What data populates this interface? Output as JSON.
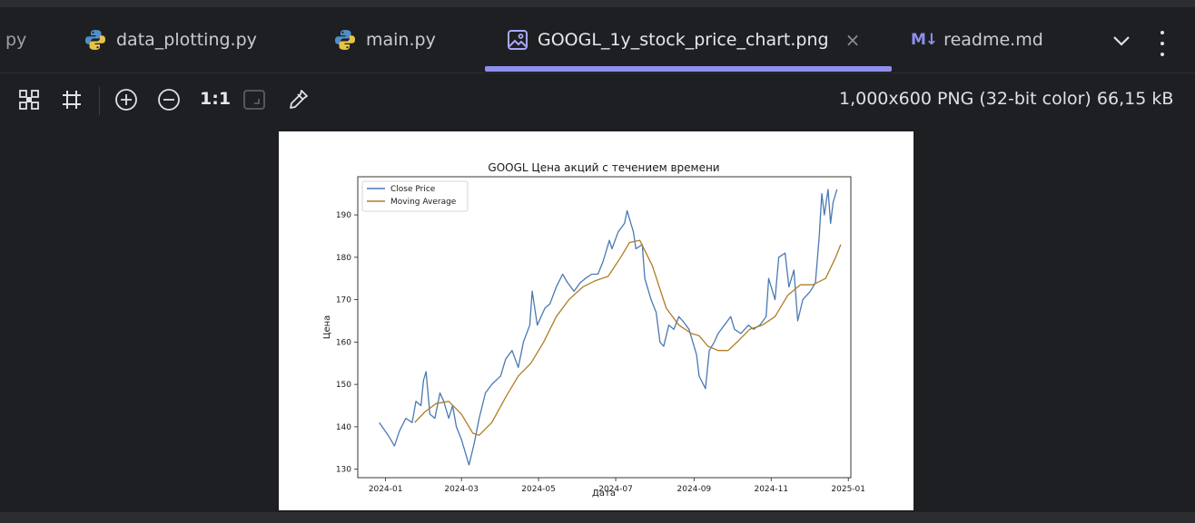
{
  "tabs": [
    {
      "label": "py",
      "icon": "python-file-icon"
    },
    {
      "label": "data_plotting.py",
      "icon": "python-file-icon"
    },
    {
      "label": "main.py",
      "icon": "python-file-icon"
    },
    {
      "label": "GOOGL_1y_stock_price_chart.png",
      "icon": "image-file-icon",
      "active": true,
      "close": "×"
    },
    {
      "label": "readme.md",
      "icon": "markdown-file-icon",
      "badge": "M↓"
    }
  ],
  "toolbar": {
    "actual_size_label": "1:1",
    "icons": [
      "grid-icon",
      "chessboard-icon",
      "zoom-in-icon",
      "zoom-out-icon",
      "fit-zoom-icon",
      "color-picker-icon"
    ],
    "image_info": "1,000x600 PNG (32-bit color) 66,15 kB"
  },
  "colors": {
    "accent": "#8f8ff0",
    "background": "#1e1f22",
    "close_price": "#4a79b3",
    "moving_average": "#b07d26"
  },
  "chart_data": {
    "type": "line",
    "title": "GOOGL Цена акций с течением времени",
    "xlabel": "Дата",
    "ylabel": "Цена",
    "xticks": [
      "2024-01",
      "2024-03",
      "2024-05",
      "2024-07",
      "2024-09",
      "2024-11",
      "2025-01"
    ],
    "yticks": [
      130,
      140,
      150,
      160,
      170,
      180,
      190
    ],
    "xlim": [
      "2023-12-10",
      "2025-01-03"
    ],
    "ylim": [
      128,
      199
    ],
    "legend": "top-left",
    "grid": false,
    "series": [
      {
        "name": "Close Price",
        "color": "#4a79b3",
        "points": [
          [
            "2023-12-27",
            141
          ],
          [
            "2024-01-03",
            138
          ],
          [
            "2024-01-08",
            135.5
          ],
          [
            "2024-01-12",
            139
          ],
          [
            "2024-01-17",
            142
          ],
          [
            "2024-01-22",
            141
          ],
          [
            "2024-01-25",
            146
          ],
          [
            "2024-01-29",
            145
          ],
          [
            "2024-01-31",
            151
          ],
          [
            "2024-02-02",
            153
          ],
          [
            "2024-02-05",
            143
          ],
          [
            "2024-02-09",
            142
          ],
          [
            "2024-02-13",
            148
          ],
          [
            "2024-02-16",
            146
          ],
          [
            "2024-02-20",
            142
          ],
          [
            "2024-02-23",
            145
          ],
          [
            "2024-02-26",
            140
          ],
          [
            "2024-03-01",
            137
          ],
          [
            "2024-03-05",
            133
          ],
          [
            "2024-03-07",
            131
          ],
          [
            "2024-03-11",
            136
          ],
          [
            "2024-03-15",
            142
          ],
          [
            "2024-03-20",
            148
          ],
          [
            "2024-03-25",
            150
          ],
          [
            "2024-04-01",
            152
          ],
          [
            "2024-04-05",
            156
          ],
          [
            "2024-04-10",
            158
          ],
          [
            "2024-04-15",
            154
          ],
          [
            "2024-04-19",
            160
          ],
          [
            "2024-04-24",
            164
          ],
          [
            "2024-04-26",
            172
          ],
          [
            "2024-04-30",
            164
          ],
          [
            "2024-05-06",
            168
          ],
          [
            "2024-05-10",
            169
          ],
          [
            "2024-05-15",
            173
          ],
          [
            "2024-05-20",
            176
          ],
          [
            "2024-05-24",
            174
          ],
          [
            "2024-05-29",
            172
          ],
          [
            "2024-06-03",
            174
          ],
          [
            "2024-06-07",
            175
          ],
          [
            "2024-06-12",
            176
          ],
          [
            "2024-06-17",
            176
          ],
          [
            "2024-06-21",
            179
          ],
          [
            "2024-06-26",
            184
          ],
          [
            "2024-06-28",
            182
          ],
          [
            "2024-07-03",
            186
          ],
          [
            "2024-07-08",
            188
          ],
          [
            "2024-07-10",
            191
          ],
          [
            "2024-07-15",
            186
          ],
          [
            "2024-07-17",
            182
          ],
          [
            "2024-07-22",
            183
          ],
          [
            "2024-07-24",
            175
          ],
          [
            "2024-07-29",
            170
          ],
          [
            "2024-08-02",
            167
          ],
          [
            "2024-08-05",
            160
          ],
          [
            "2024-08-08",
            159
          ],
          [
            "2024-08-12",
            164
          ],
          [
            "2024-08-16",
            163
          ],
          [
            "2024-08-20",
            166
          ],
          [
            "2024-08-23",
            165
          ],
          [
            "2024-08-28",
            163
          ],
          [
            "2024-09-03",
            157
          ],
          [
            "2024-09-05",
            152
          ],
          [
            "2024-09-10",
            149
          ],
          [
            "2024-09-13",
            158
          ],
          [
            "2024-09-17",
            160
          ],
          [
            "2024-09-20",
            162
          ],
          [
            "2024-09-25",
            164
          ],
          [
            "2024-09-30",
            166
          ],
          [
            "2024-10-03",
            163
          ],
          [
            "2024-10-08",
            162
          ],
          [
            "2024-10-14",
            164
          ],
          [
            "2024-10-18",
            163
          ],
          [
            "2024-10-23",
            164
          ],
          [
            "2024-10-28",
            166
          ],
          [
            "2024-10-30",
            175
          ],
          [
            "2024-11-04",
            170
          ],
          [
            "2024-11-07",
            180
          ],
          [
            "2024-11-12",
            181
          ],
          [
            "2024-11-15",
            173
          ],
          [
            "2024-11-19",
            177
          ],
          [
            "2024-11-22",
            165
          ],
          [
            "2024-11-26",
            170
          ],
          [
            "2024-12-02",
            172
          ],
          [
            "2024-12-06",
            174
          ],
          [
            "2024-12-09",
            185
          ],
          [
            "2024-12-11",
            195
          ],
          [
            "2024-12-13",
            190
          ],
          [
            "2024-12-16",
            196
          ],
          [
            "2024-12-18",
            188
          ],
          [
            "2024-12-20",
            193
          ],
          [
            "2024-12-23",
            196
          ]
        ]
      },
      {
        "name": "Moving Average",
        "color": "#b07d26",
        "points": [
          [
            "2024-01-24",
            141
          ],
          [
            "2024-02-01",
            143.5
          ],
          [
            "2024-02-10",
            145.5
          ],
          [
            "2024-02-20",
            146
          ],
          [
            "2024-03-01",
            143
          ],
          [
            "2024-03-10",
            138.5
          ],
          [
            "2024-03-15",
            138
          ],
          [
            "2024-03-25",
            141
          ],
          [
            "2024-04-05",
            147
          ],
          [
            "2024-04-15",
            152
          ],
          [
            "2024-04-25",
            155
          ],
          [
            "2024-05-05",
            160
          ],
          [
            "2024-05-15",
            166
          ],
          [
            "2024-05-25",
            170
          ],
          [
            "2024-06-05",
            173
          ],
          [
            "2024-06-15",
            174.5
          ],
          [
            "2024-06-25",
            175.5
          ],
          [
            "2024-07-05",
            180
          ],
          [
            "2024-07-12",
            183.5
          ],
          [
            "2024-07-20",
            184
          ],
          [
            "2024-07-30",
            178
          ],
          [
            "2024-08-10",
            168
          ],
          [
            "2024-08-20",
            164
          ],
          [
            "2024-08-30",
            162
          ],
          [
            "2024-09-05",
            161.5
          ],
          [
            "2024-09-12",
            159
          ],
          [
            "2024-09-20",
            158
          ],
          [
            "2024-09-28",
            158
          ],
          [
            "2024-10-05",
            160
          ],
          [
            "2024-10-15",
            163
          ],
          [
            "2024-10-25",
            164
          ],
          [
            "2024-11-04",
            166
          ],
          [
            "2024-11-14",
            171
          ],
          [
            "2024-11-24",
            173.5
          ],
          [
            "2024-12-04",
            173.5
          ],
          [
            "2024-12-14",
            175
          ],
          [
            "2024-12-22",
            180
          ],
          [
            "2024-12-26",
            183
          ]
        ]
      }
    ]
  }
}
